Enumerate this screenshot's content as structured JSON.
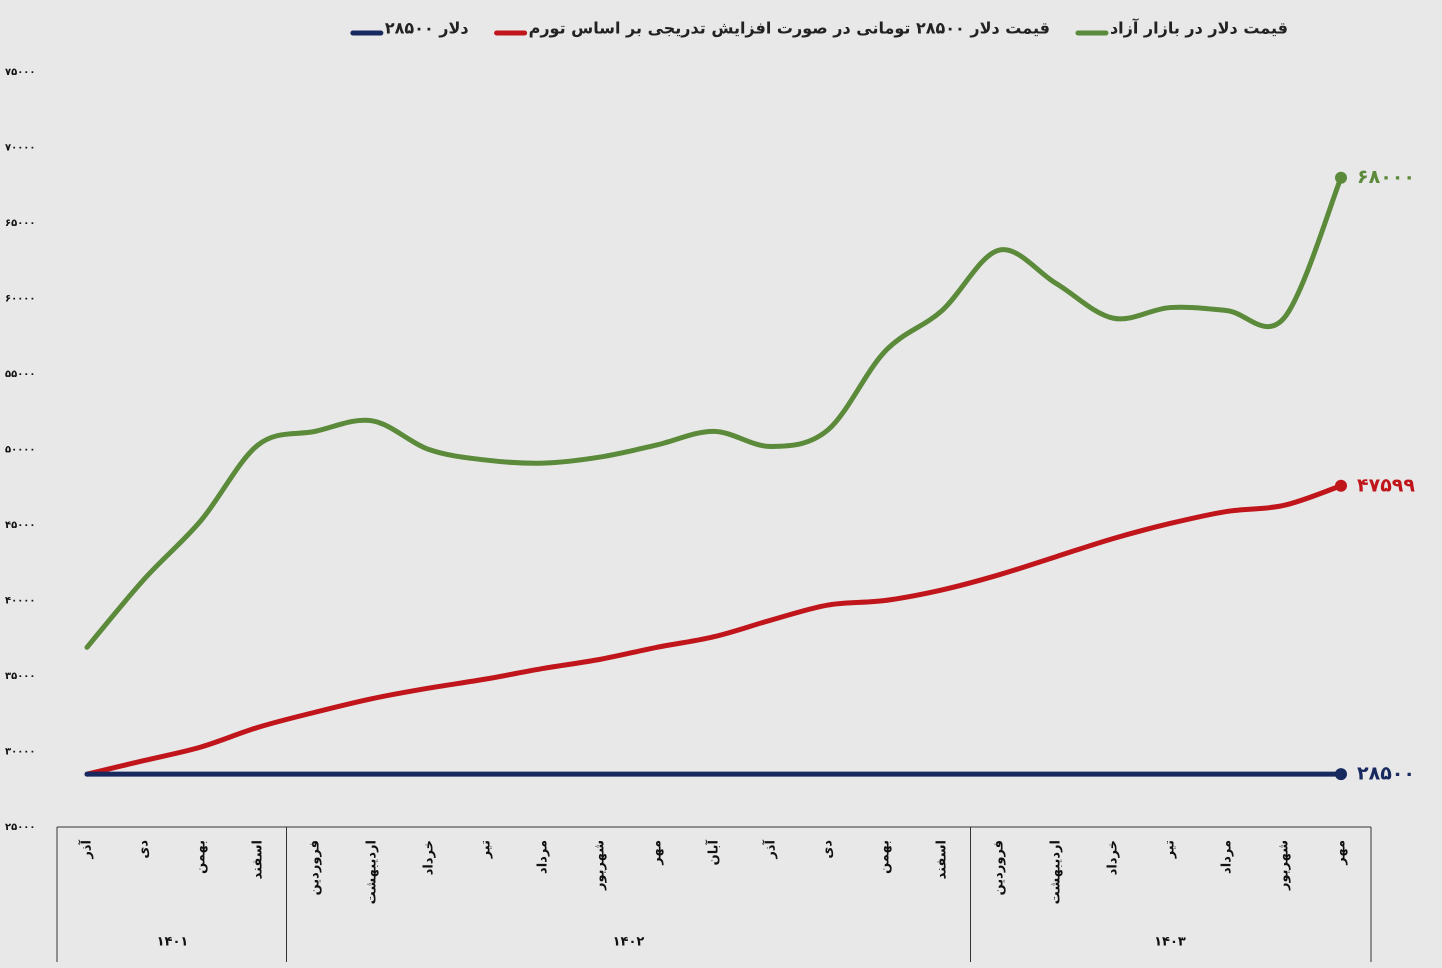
{
  "chart_data": {
    "type": "line",
    "categories": [
      "آذر",
      "دی",
      "بهمن",
      "اسفند",
      "فروردین",
      "اردیبهشت",
      "خرداد",
      "تیر",
      "مرداد",
      "شهریور",
      "مهر",
      "آبان",
      "آذر",
      "دی",
      "بهمن",
      "اسفند",
      "فروردین",
      "اردیبهشت",
      "خرداد",
      "تیر",
      "مرداد",
      "شهریور",
      "مهر"
    ],
    "groups": [
      {
        "label": "۱۴۰۱",
        "start": 0,
        "end": 3
      },
      {
        "label": "۱۴۰۲",
        "start": 4,
        "end": 15
      },
      {
        "label": "۱۴۰۳",
        "start": 16,
        "end": 22
      }
    ],
    "series": [
      {
        "name": "قیمت دلار در بازار آزاد",
        "color": "#5a8a3a",
        "values": [
          36900,
          41400,
          45300,
          50300,
          51200,
          51900,
          50000,
          49300,
          49100,
          49500,
          50300,
          51200,
          50200,
          51300,
          56500,
          59200,
          63200,
          61000,
          58700,
          59400,
          59200,
          58700,
          68000
        ],
        "value_labels": [
          null,
          null,
          null,
          null,
          null,
          null,
          null,
          null,
          null,
          null,
          null,
          null,
          null,
          null,
          null,
          null,
          null,
          null,
          null,
          null,
          null,
          null,
          "۶۸۰۰۰"
        ]
      },
      {
        "name": "قیمت دلار ۲۸۵۰۰ تومانی در صورت افزایش تدریجی بر اساس تورم",
        "color": "#c0151b",
        "values": [
          28500,
          29400,
          30300,
          31600,
          32600,
          33500,
          34200,
          34800,
          35500,
          36100,
          36900,
          37600,
          38700,
          39700,
          40000,
          40700,
          41700,
          42900,
          44100,
          45100,
          45900,
          46300,
          47599
        ],
        "value_labels": [
          null,
          null,
          null,
          null,
          null,
          null,
          null,
          null,
          null,
          null,
          null,
          null,
          null,
          null,
          null,
          null,
          null,
          null,
          null,
          null,
          null,
          null,
          "۴۷۵۹۹"
        ]
      },
      {
        "name": "دلار ۲۸۵۰۰",
        "color": "#17295e",
        "values": [
          28500,
          28500,
          28500,
          28500,
          28500,
          28500,
          28500,
          28500,
          28500,
          28500,
          28500,
          28500,
          28500,
          28500,
          28500,
          28500,
          28500,
          28500,
          28500,
          28500,
          28500,
          28500,
          28500
        ],
        "value_labels": [
          null,
          null,
          null,
          null,
          null,
          null,
          null,
          null,
          null,
          null,
          null,
          null,
          null,
          null,
          null,
          null,
          null,
          null,
          null,
          null,
          null,
          null,
          "۲۸۵۰۰"
        ]
      }
    ],
    "ylim": [
      25000,
      75000
    ],
    "yticks": [
      {
        "value": 25000,
        "label": "۲۵۰۰۰"
      },
      {
        "value": 30000,
        "label": "۳۰۰۰۰"
      },
      {
        "value": 35000,
        "label": "۳۵۰۰۰"
      },
      {
        "value": 40000,
        "label": "۴۰۰۰۰"
      },
      {
        "value": 45000,
        "label": "۴۵۰۰۰"
      },
      {
        "value": 50000,
        "label": "۵۰۰۰۰"
      },
      {
        "value": 55000,
        "label": "۵۵۰۰۰"
      },
      {
        "value": 60000,
        "label": "۶۰۰۰۰"
      },
      {
        "value": 65000,
        "label": "۶۵۰۰۰"
      },
      {
        "value": 70000,
        "label": "۷۰۰۰۰"
      },
      {
        "value": 75000,
        "label": "۷۵۰۰۰"
      }
    ],
    "grid": false
  }
}
